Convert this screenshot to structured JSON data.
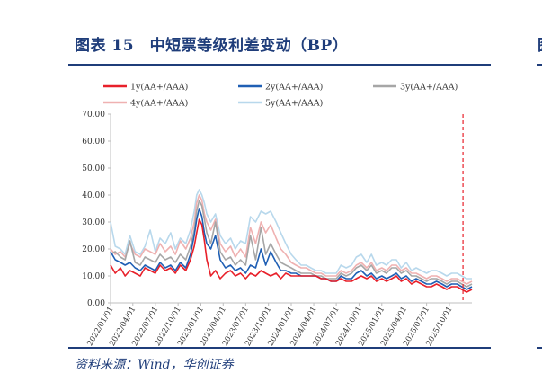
{
  "title": "图表 15　中短票等级利差变动（BP）",
  "source": "资料来源：Wind，华创证券",
  "edge_char": "图",
  "chart_data": {
    "type": "line",
    "title": "图表 15　中短票等级利差变动（BP）",
    "xlabel": "",
    "ylabel": "",
    "ylim": [
      0,
      70
    ],
    "yticks": [
      "0.00",
      "10.00",
      "20.00",
      "30.00",
      "40.00",
      "50.00",
      "60.00",
      "70.00"
    ],
    "x_dates": [
      "2022/01/01",
      "2022/04/01",
      "2022/07/01",
      "2022/10/01",
      "2023/01/01",
      "2023/04/01",
      "2023/07/01",
      "2023/10/01",
      "2024/01/01",
      "2024/04/01",
      "2024/07/01",
      "2024/10/01",
      "2025/01/01",
      "2025/04/01",
      "2025/07/01",
      "2025/10/01"
    ],
    "x_range": [
      "2022/01/01",
      "2025/12/31"
    ],
    "legend_position": "top",
    "marker_date": "2025/11/25",
    "series": [
      {
        "name": "1y(AA+/AAA)",
        "color": "#e8202a",
        "width": 1.6,
        "dates": [
          "2022/01/01",
          "2022/01/20",
          "2022/02/10",
          "2022/03/01",
          "2022/03/20",
          "2022/04/10",
          "2022/05/01",
          "2022/05/20",
          "2022/06/10",
          "2022/07/01",
          "2022/07/20",
          "2022/08/10",
          "2022/09/01",
          "2022/09/20",
          "2022/10/10",
          "2022/11/01",
          "2022/11/20",
          "2022/12/05",
          "2022/12/15",
          "2022/12/25",
          "2023/01/05",
          "2023/01/15",
          "2023/01/25",
          "2023/02/10",
          "2023/03/01",
          "2023/03/20",
          "2023/04/10",
          "2023/05/01",
          "2023/05/20",
          "2023/06/10",
          "2023/07/01",
          "2023/07/20",
          "2023/08/10",
          "2023/09/01",
          "2023/09/20",
          "2023/10/10",
          "2023/11/01",
          "2023/11/20",
          "2023/12/10",
          "2024/01/01",
          "2024/01/20",
          "2024/02/10",
          "2024/03/01",
          "2024/03/20",
          "2024/04/10",
          "2024/05/01",
          "2024/05/20",
          "2024/06/10",
          "2024/07/01",
          "2024/07/20",
          "2024/08/10",
          "2024/09/01",
          "2024/09/20",
          "2024/10/10",
          "2024/11/01",
          "2024/11/20",
          "2024/12/10",
          "2025/01/01",
          "2025/01/20",
          "2025/02/10",
          "2025/03/01",
          "2025/03/20",
          "2025/04/10",
          "2025/05/01",
          "2025/05/20",
          "2025/06/10",
          "2025/07/01",
          "2025/07/20",
          "2025/08/10",
          "2025/09/01",
          "2025/09/20",
          "2025/10/10",
          "2025/11/01",
          "2025/11/20",
          "2025/12/10",
          "2025/12/31"
        ],
        "values": [
          14,
          11,
          13,
          10,
          12,
          11,
          10,
          13,
          12,
          11,
          14,
          12,
          13,
          11,
          14,
          12,
          16,
          21,
          26,
          31,
          29,
          23,
          16,
          10,
          12,
          9,
          11,
          12,
          10,
          11,
          9,
          11,
          10,
          12,
          11,
          10,
          11,
          9,
          11,
          10,
          10,
          10,
          10,
          10,
          10,
          9,
          9,
          8,
          8,
          9,
          8,
          8,
          9,
          10,
          9,
          10,
          8,
          9,
          8,
          9,
          10,
          8,
          9,
          7,
          8,
          7,
          6,
          6,
          7,
          6,
          5,
          6,
          6,
          5,
          4,
          5
        ]
      },
      {
        "name": "2y(AA+/AAA)",
        "color": "#1f5fb4",
        "width": 1.6,
        "dates": [
          "2022/01/01",
          "2022/01/20",
          "2022/02/10",
          "2022/03/01",
          "2022/03/20",
          "2022/04/10",
          "2022/05/01",
          "2022/05/20",
          "2022/06/10",
          "2022/07/01",
          "2022/07/20",
          "2022/08/10",
          "2022/09/01",
          "2022/09/20",
          "2022/10/10",
          "2022/11/01",
          "2022/11/20",
          "2022/12/05",
          "2022/12/15",
          "2022/12/25",
          "2023/01/05",
          "2023/01/15",
          "2023/01/25",
          "2023/02/10",
          "2023/03/01",
          "2023/03/20",
          "2023/04/10",
          "2023/05/01",
          "2023/05/20",
          "2023/06/10",
          "2023/07/01",
          "2023/07/20",
          "2023/08/10",
          "2023/09/01",
          "2023/09/20",
          "2023/10/10",
          "2023/11/01",
          "2023/11/20",
          "2023/12/10",
          "2024/01/01",
          "2024/01/20",
          "2024/02/10",
          "2024/03/01",
          "2024/03/20",
          "2024/04/10",
          "2024/05/01",
          "2024/05/20",
          "2024/06/10",
          "2024/07/01",
          "2024/07/20",
          "2024/08/10",
          "2024/09/01",
          "2024/09/20",
          "2024/10/10",
          "2024/11/01",
          "2024/11/20",
          "2024/12/10",
          "2025/01/01",
          "2025/01/20",
          "2025/02/10",
          "2025/03/01",
          "2025/03/20",
          "2025/04/10",
          "2025/05/01",
          "2025/05/20",
          "2025/06/10",
          "2025/07/01",
          "2025/07/20",
          "2025/08/10",
          "2025/09/01",
          "2025/09/20",
          "2025/10/10",
          "2025/11/01",
          "2025/11/20",
          "2025/12/10",
          "2025/12/31"
        ],
        "values": [
          19,
          16,
          15,
          14,
          15,
          13,
          12,
          14,
          13,
          12,
          15,
          13,
          14,
          12,
          15,
          13,
          18,
          25,
          31,
          35,
          32,
          26,
          22,
          20,
          25,
          16,
          13,
          14,
          12,
          13,
          11,
          14,
          13,
          20,
          14,
          19,
          15,
          12,
          12,
          11,
          11,
          10,
          10,
          10,
          10,
          9,
          9,
          8,
          8,
          10,
          9,
          9,
          11,
          12,
          10,
          11,
          9,
          10,
          9,
          10,
          11,
          9,
          10,
          8,
          9,
          8,
          7,
          7,
          8,
          7,
          6,
          7,
          7,
          6,
          5,
          6
        ]
      },
      {
        "name": "3y(AA+/AAA)",
        "color": "#a6a6a6",
        "width": 1.6,
        "dates": [
          "2022/01/01",
          "2022/01/20",
          "2022/02/10",
          "2022/03/01",
          "2022/03/20",
          "2022/04/10",
          "2022/05/01",
          "2022/05/20",
          "2022/06/10",
          "2022/07/01",
          "2022/07/20",
          "2022/08/10",
          "2022/09/01",
          "2022/09/20",
          "2022/10/10",
          "2022/11/01",
          "2022/11/20",
          "2022/12/05",
          "2022/12/15",
          "2022/12/25",
          "2023/01/05",
          "2023/01/15",
          "2023/01/25",
          "2023/02/10",
          "2023/03/01",
          "2023/03/20",
          "2023/04/10",
          "2023/05/01",
          "2023/05/20",
          "2023/06/10",
          "2023/07/01",
          "2023/07/20",
          "2023/08/10",
          "2023/09/01",
          "2023/09/20",
          "2023/10/10",
          "2023/11/01",
          "2023/11/20",
          "2023/12/10",
          "2024/01/01",
          "2024/01/20",
          "2024/02/10",
          "2024/03/01",
          "2024/03/20",
          "2024/04/10",
          "2024/05/01",
          "2024/05/20",
          "2024/06/10",
          "2024/07/01",
          "2024/07/20",
          "2024/08/10",
          "2024/09/01",
          "2024/09/20",
          "2024/10/10",
          "2024/11/01",
          "2024/11/20",
          "2024/12/10",
          "2025/01/01",
          "2025/01/20",
          "2025/02/10",
          "2025/03/01",
          "2025/03/20",
          "2025/04/10",
          "2025/05/01",
          "2025/05/20",
          "2025/06/10",
          "2025/07/01",
          "2025/07/20",
          "2025/08/10",
          "2025/09/01",
          "2025/09/20",
          "2025/10/10",
          "2025/11/01",
          "2025/11/20",
          "2025/12/10",
          "2025/12/31"
        ],
        "values": [
          18,
          19,
          17,
          16,
          23,
          15,
          14,
          17,
          16,
          15,
          18,
          16,
          17,
          15,
          18,
          16,
          21,
          27,
          34,
          38,
          36,
          31,
          26,
          22,
          30,
          19,
          16,
          17,
          14,
          16,
          14,
          25,
          16,
          28,
          18,
          22,
          18,
          15,
          14,
          13,
          12,
          11,
          11,
          11,
          10,
          10,
          9,
          9,
          9,
          11,
          10,
          11,
          13,
          14,
          12,
          14,
          11,
          12,
          11,
          13,
          13,
          11,
          12,
          10,
          10,
          9,
          8,
          9,
          9,
          8,
          7,
          8,
          8,
          7,
          6,
          7
        ]
      },
      {
        "name": "4y(AA+/AAA)",
        "color": "#efb1b1",
        "width": 1.6,
        "dates": [
          "2022/01/01",
          "2022/01/20",
          "2022/02/10",
          "2022/03/01",
          "2022/03/20",
          "2022/04/10",
          "2022/05/01",
          "2022/05/20",
          "2022/06/10",
          "2022/07/01",
          "2022/07/20",
          "2022/08/10",
          "2022/09/01",
          "2022/09/20",
          "2022/10/10",
          "2022/11/01",
          "2022/11/20",
          "2022/12/05",
          "2022/12/15",
          "2022/12/25",
          "2023/01/05",
          "2023/01/15",
          "2023/01/25",
          "2023/02/10",
          "2023/03/01",
          "2023/03/20",
          "2023/04/10",
          "2023/05/01",
          "2023/05/20",
          "2023/06/10",
          "2023/07/01",
          "2023/07/20",
          "2023/08/10",
          "2023/09/01",
          "2023/09/20",
          "2023/10/10",
          "2023/11/01",
          "2023/11/20",
          "2023/12/10",
          "2024/01/01",
          "2024/01/20",
          "2024/02/10",
          "2024/03/01",
          "2024/03/20",
          "2024/04/10",
          "2024/05/01",
          "2024/05/20",
          "2024/06/10",
          "2024/07/01",
          "2024/07/20",
          "2024/08/10",
          "2024/09/01",
          "2024/09/20",
          "2024/10/10",
          "2024/11/01",
          "2024/11/20",
          "2024/12/10",
          "2025/01/01",
          "2025/01/20",
          "2025/02/10",
          "2025/03/01",
          "2025/03/20",
          "2025/04/10",
          "2025/05/01",
          "2025/05/20",
          "2025/06/10",
          "2025/07/01",
          "2025/07/20",
          "2025/08/10",
          "2025/09/01",
          "2025/09/20",
          "2025/10/10",
          "2025/11/01",
          "2025/11/20",
          "2025/12/10",
          "2025/12/31"
        ],
        "values": [
          20,
          18,
          19,
          17,
          22,
          18,
          17,
          20,
          19,
          18,
          22,
          19,
          21,
          18,
          23,
          20,
          24,
          30,
          37,
          40,
          38,
          33,
          30,
          27,
          31,
          22,
          19,
          21,
          17,
          20,
          17,
          28,
          22,
          30,
          26,
          29,
          24,
          20,
          18,
          15,
          14,
          13,
          13,
          12,
          11,
          11,
          10,
          10,
          10,
          12,
          11,
          12,
          14,
          15,
          13,
          15,
          12,
          13,
          12,
          14,
          14,
          12,
          13,
          11,
          11,
          10,
          9,
          10,
          10,
          9,
          8,
          9,
          9,
          8,
          7,
          8
        ]
      },
      {
        "name": "5y(AA+/AAA)",
        "color": "#b8d8ec",
        "width": 1.6,
        "dates": [
          "2022/01/01",
          "2022/01/20",
          "2022/02/10",
          "2022/03/01",
          "2022/03/20",
          "2022/04/10",
          "2022/05/01",
          "2022/05/20",
          "2022/06/10",
          "2022/07/01",
          "2022/07/20",
          "2022/08/10",
          "2022/09/01",
          "2022/09/20",
          "2022/10/10",
          "2022/11/01",
          "2022/11/20",
          "2022/12/05",
          "2022/12/15",
          "2022/12/25",
          "2023/01/05",
          "2023/01/15",
          "2023/01/25",
          "2023/02/10",
          "2023/03/01",
          "2023/03/20",
          "2023/04/10",
          "2023/05/01",
          "2023/05/20",
          "2023/06/10",
          "2023/07/01",
          "2023/07/20",
          "2023/08/10",
          "2023/09/01",
          "2023/09/20",
          "2023/10/10",
          "2023/11/01",
          "2023/11/20",
          "2023/12/10",
          "2024/01/01",
          "2024/01/20",
          "2024/02/10",
          "2024/03/01",
          "2024/03/20",
          "2024/04/10",
          "2024/05/01",
          "2024/05/20",
          "2024/06/10",
          "2024/07/01",
          "2024/07/20",
          "2024/08/10",
          "2024/09/01",
          "2024/09/20",
          "2024/10/10",
          "2024/11/01",
          "2024/11/20",
          "2024/12/10",
          "2025/01/01",
          "2025/01/20",
          "2025/02/10",
          "2025/03/01",
          "2025/03/20",
          "2025/04/10",
          "2025/05/01",
          "2025/05/20",
          "2025/06/10",
          "2025/07/01",
          "2025/07/20",
          "2025/08/10",
          "2025/09/01",
          "2025/09/20",
          "2025/10/10",
          "2025/11/01",
          "2025/11/20",
          "2025/12/10",
          "2025/12/31"
        ],
        "values": [
          30,
          21,
          20,
          18,
          25,
          19,
          18,
          21,
          27,
          19,
          24,
          22,
          26,
          20,
          24,
          22,
          27,
          34,
          40,
          42,
          40,
          37,
          33,
          30,
          33,
          25,
          22,
          24,
          20,
          23,
          22,
          32,
          30,
          34,
          33,
          34,
          30,
          26,
          22,
          18,
          16,
          14,
          14,
          13,
          12,
          12,
          11,
          11,
          11,
          14,
          13,
          14,
          17,
          18,
          15,
          18,
          14,
          15,
          14,
          16,
          16,
          13,
          15,
          12,
          13,
          12,
          11,
          12,
          12,
          11,
          10,
          11,
          11,
          10,
          9,
          9
        ]
      }
    ]
  }
}
